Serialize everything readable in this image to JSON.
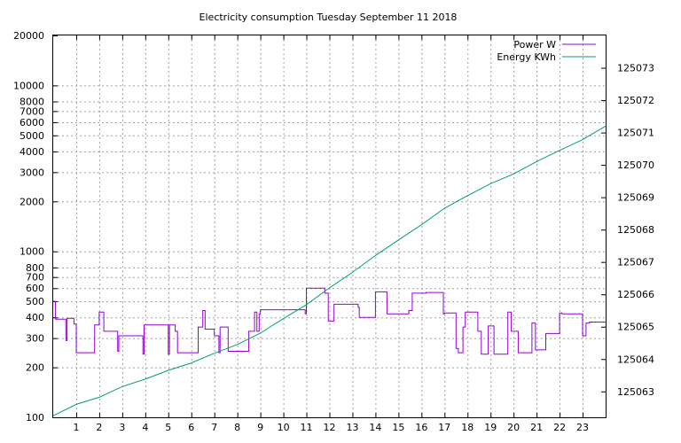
{
  "chart_data": {
    "type": "line",
    "title": "Electricity consumption Tuesday September 11 2018",
    "x_ticks": [
      1,
      2,
      3,
      4,
      5,
      6,
      7,
      8,
      9,
      10,
      11,
      12,
      13,
      14,
      15,
      16,
      17,
      18,
      19,
      20,
      21,
      22,
      23
    ],
    "xlim": [
      0,
      24
    ],
    "y_left": {
      "scale": "log",
      "ylim": [
        100,
        20000
      ],
      "ticks": [
        100,
        200,
        300,
        400,
        500,
        600,
        700,
        800,
        1000,
        2000,
        3000,
        4000,
        5000,
        6000,
        7000,
        8000,
        10000,
        20000
      ]
    },
    "y_right": {
      "scale": "linear",
      "ylim": [
        125062.2,
        125074
      ],
      "ticks": [
        125063,
        125064,
        125065,
        125066,
        125067,
        125068,
        125069,
        125070,
        125071,
        125072,
        125073
      ]
    },
    "grid": true,
    "legend_position": "top-right",
    "series": [
      {
        "name": "Power W",
        "axis": "left",
        "color": "#9400d3",
        "x": [
          0,
          0.1,
          0.1,
          0.55,
          0.55,
          0.6,
          0.6,
          0.9,
          0.9,
          1.0,
          1.0,
          1.8,
          1.8,
          2.0,
          2.0,
          2.2,
          2.2,
          2.8,
          2.8,
          2.85,
          2.85,
          3.9,
          3.9,
          3.95,
          3.95,
          5.0,
          5.0,
          5.05,
          5.05,
          5.3,
          5.3,
          5.4,
          5.4,
          6.3,
          6.3,
          6.5,
          6.5,
          6.6,
          6.6,
          7.0,
          7.0,
          7.2,
          7.2,
          7.25,
          7.25,
          7.6,
          7.6,
          8.5,
          8.5,
          8.75,
          8.75,
          8.85,
          8.85,
          8.95,
          8.95,
          9.0,
          9.0,
          10.95,
          10.95,
          11.0,
          11.0,
          11.8,
          11.8,
          11.95,
          11.95,
          12.2,
          12.2,
          13.25,
          13.25,
          13.3,
          13.3,
          14.0,
          14.0,
          14.5,
          14.5,
          15.45,
          15.45,
          15.6,
          15.6,
          16.2,
          16.2,
          16.95,
          16.95,
          17.0,
          17.0,
          17.5,
          17.5,
          17.6,
          17.6,
          17.8,
          17.8,
          17.9,
          17.9,
          18.45,
          18.45,
          18.6,
          18.6,
          18.9,
          18.9,
          19.15,
          19.15,
          19.75,
          19.75,
          19.9,
          19.9,
          20.2,
          20.2,
          20.8,
          20.8,
          20.95,
          20.95,
          21.4,
          21.4,
          22.0,
          22.0,
          22.1,
          22.1,
          23.0,
          23.0,
          23.15,
          23.15,
          23.3,
          23.3,
          24.0
        ],
        "y": [
          500,
          500,
          390,
          390,
          290,
          290,
          395,
          395,
          365,
          365,
          245,
          245,
          360,
          360,
          430,
          430,
          330,
          330,
          250,
          250,
          310,
          310,
          240,
          240,
          360,
          360,
          240,
          240,
          360,
          360,
          330,
          330,
          245,
          245,
          350,
          350,
          440,
          440,
          340,
          340,
          310,
          310,
          245,
          245,
          350,
          350,
          250,
          250,
          330,
          330,
          430,
          430,
          330,
          330,
          420,
          420,
          445,
          445,
          420,
          420,
          600,
          600,
          560,
          560,
          380,
          380,
          480,
          480,
          460,
          460,
          400,
          400,
          570,
          570,
          420,
          420,
          440,
          440,
          560,
          560,
          565,
          565,
          420,
          420,
          425,
          425,
          260,
          260,
          245,
          245,
          350,
          350,
          430,
          430,
          330,
          330,
          240,
          240,
          355,
          355,
          240,
          240,
          430,
          430,
          330,
          330,
          245,
          245,
          370,
          370,
          255,
          255,
          320,
          320,
          425,
          425,
          420,
          420,
          310,
          310,
          370,
          370,
          375,
          375
        ]
      },
      {
        "name": "Energy KWh",
        "axis": "right",
        "color": "#009e73",
        "x": [
          0,
          1,
          2,
          3,
          4,
          5,
          6,
          7,
          8,
          9,
          10,
          11,
          12,
          13,
          14,
          15,
          16,
          17,
          18,
          19,
          20,
          21,
          22,
          23,
          24
        ],
        "y": [
          125062.25,
          125062.6,
          125062.82,
          125063.15,
          125063.38,
          125063.65,
          125063.88,
          125064.18,
          125064.45,
          125064.8,
          125065.25,
          125065.68,
          125066.2,
          125066.68,
          125067.2,
          125067.68,
          125068.15,
          125068.66,
          125069.05,
          125069.42,
          125069.72,
          125070.1,
          125070.45,
          125070.78,
          125071.2
        ]
      }
    ]
  }
}
